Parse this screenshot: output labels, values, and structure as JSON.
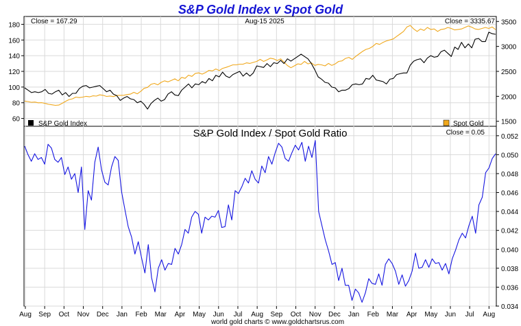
{
  "chart_data": [
    {
      "type": "line",
      "title": "S&P Gold Index v Spot Gold",
      "date_label": "Aug-15  2025",
      "close_left": "Close = 167.29",
      "close_right": "Close = 3335.67",
      "left_axis": {
        "ylim": [
          50,
          190
        ],
        "ticks": [
          "180",
          "160",
          "140",
          "120",
          "100",
          "80",
          "60"
        ]
      },
      "right_axis": {
        "ylim": [
          1400,
          3600
        ],
        "ticks": [
          "3500",
          "3000",
          "2500",
          "2000",
          "1500"
        ]
      },
      "series": [
        {
          "name": "S&P Gold Index",
          "axis": "left",
          "color": "#000000",
          "values": [
            99,
            96,
            93,
            94,
            93,
            94,
            97,
            92,
            91,
            94,
            96,
            90,
            93,
            88,
            92,
            92,
            98,
            101,
            102,
            99,
            100,
            101,
            102,
            98,
            94,
            96,
            91,
            89,
            83,
            86,
            88,
            85,
            84,
            80,
            82,
            78,
            72,
            79,
            83,
            86,
            82,
            84,
            91,
            94,
            90,
            89,
            96,
            100,
            104,
            99,
            104,
            103,
            107,
            105,
            111,
            108,
            115,
            113,
            119,
            114,
            112,
            116,
            118,
            120,
            114,
            118,
            114,
            118,
            127,
            126,
            125,
            130,
            126,
            131,
            130,
            134,
            130,
            136,
            133,
            136,
            139,
            142,
            139,
            136,
            130,
            122,
            113,
            110,
            106,
            105,
            100,
            99,
            94,
            96,
            96,
            98,
            103,
            104,
            103,
            104,
            111,
            110,
            115,
            109,
            108,
            107,
            104,
            110,
            111,
            116,
            117,
            118,
            118,
            128,
            133,
            135,
            136,
            131,
            137,
            140,
            138,
            139,
            145,
            147,
            143,
            139,
            151,
            148,
            157,
            150,
            155,
            150,
            161,
            162,
            158,
            158,
            170,
            168,
            167.29
          ]
        },
        {
          "name": "Spot Gold",
          "axis": "right",
          "color": "#f0a81c",
          "values": [
            1905,
            1895,
            1880,
            1885,
            1870,
            1873,
            1858,
            1840,
            1830,
            1820,
            1825,
            1860,
            1900,
            1935,
            1950,
            1985,
            1975,
            1985,
            2000,
            1990,
            2010,
            2005,
            2030,
            2020,
            1998,
            2007,
            1995,
            2017,
            2020,
            2022,
            2035,
            2045,
            2080,
            2050,
            2100,
            2160,
            2180,
            2240,
            2260,
            2230,
            2280,
            2310,
            2290,
            2320,
            2350,
            2310,
            2380,
            2360,
            2425,
            2400,
            2460,
            2470,
            2445,
            2475,
            2520,
            2510,
            2548,
            2516,
            2560,
            2580,
            2605,
            2630,
            2630,
            2645,
            2645,
            2670,
            2660,
            2680,
            2700,
            2740,
            2700,
            2730,
            2764,
            2750,
            2716,
            2750,
            2686,
            2617,
            2573,
            2610,
            2650,
            2640,
            2700,
            2650,
            2670,
            2620,
            2640,
            2630,
            2610,
            2660,
            2620,
            2650,
            2700,
            2710,
            2760,
            2780,
            2740,
            2800,
            2850,
            2900,
            2940,
            2960,
            3000,
            3060,
            3040,
            3080,
            3110,
            3130,
            3150,
            3200,
            3250,
            3300,
            3390,
            3420,
            3350,
            3300,
            3350,
            3320,
            3380,
            3340,
            3350,
            3300,
            3340,
            3350,
            3380,
            3360,
            3330,
            3340,
            3350,
            3380,
            3410,
            3385,
            3350,
            3340,
            3360,
            3380,
            3360,
            3390,
            3335.67
          ]
        }
      ],
      "legend": [
        "S&P Gold Index",
        "Spot Gold"
      ]
    },
    {
      "type": "line",
      "title": "S&P Gold Index  /  Spot Gold Ratio",
      "close_label": "Close = 0.05",
      "ylim": [
        0.034,
        0.053
      ],
      "right_ticks": [
        "0.052",
        "0.050",
        "0.048",
        "0.046",
        "0.044",
        "0.042",
        "0.040",
        "0.038",
        "0.036",
        "0.034"
      ],
      "series": [
        {
          "name": "S&P Gold Index / Spot Gold Ratio",
          "color": "#1414e0",
          "values": [
            0.0509,
            0.05,
            0.0493,
            0.0501,
            0.0495,
            0.0497,
            0.049,
            0.0511,
            0.0507,
            0.0495,
            0.0492,
            0.0497,
            0.0479,
            0.0487,
            0.0474,
            0.048,
            0.046,
            0.0487,
            0.0421,
            0.0462,
            0.0452,
            0.0492,
            0.0508,
            0.0484,
            0.0471,
            0.0468,
            0.0487,
            0.0498,
            0.0494,
            0.0461,
            0.0442,
            0.0424,
            0.0413,
            0.0395,
            0.0408,
            0.0391,
            0.0375,
            0.0405,
            0.037,
            0.0355,
            0.038,
            0.0389,
            0.0378,
            0.0385,
            0.0384,
            0.0401,
            0.0395,
            0.0405,
            0.0421,
            0.0417,
            0.0434,
            0.044,
            0.0437,
            0.0417,
            0.0434,
            0.0431,
            0.0435,
            0.0434,
            0.0441,
            0.0423,
            0.0424,
            0.0447,
            0.0431,
            0.0462,
            0.0459,
            0.0466,
            0.0475,
            0.047,
            0.0483,
            0.0474,
            0.047,
            0.0488,
            0.0481,
            0.0498,
            0.049,
            0.0502,
            0.0512,
            0.0508,
            0.0496,
            0.0493,
            0.0502,
            0.051,
            0.0505,
            0.0513,
            0.0493,
            0.0509,
            0.0497,
            0.0515,
            0.044,
            0.0425,
            0.041,
            0.0398,
            0.0384,
            0.0386,
            0.0367,
            0.038,
            0.0362,
            0.0362,
            0.0346,
            0.0358,
            0.0354,
            0.0344,
            0.0354,
            0.0369,
            0.0364,
            0.0363,
            0.0374,
            0.0362,
            0.0384,
            0.039,
            0.0385,
            0.0377,
            0.0363,
            0.0373,
            0.0361,
            0.0367,
            0.0377,
            0.0396,
            0.038,
            0.0381,
            0.0389,
            0.0381,
            0.039,
            0.0385,
            0.0386,
            0.0378,
            0.0385,
            0.0374,
            0.039,
            0.0399,
            0.041,
            0.0417,
            0.0412,
            0.0425,
            0.0435,
            0.0417,
            0.0447,
            0.0455,
            0.0481,
            0.0486,
            0.0496,
            0.0501
          ]
        }
      ]
    }
  ],
  "x_axis": {
    "labels": [
      "Aug",
      "Sep",
      "Oct",
      "Nov",
      "Dec",
      "Jan",
      "Feb",
      "Mar",
      "Apr",
      "May",
      "Jun",
      "Jul",
      "Aug",
      "Sep",
      "Oct",
      "Nov",
      "Dec",
      "Jan",
      "Feb",
      "Mar",
      "Apr",
      "May",
      "Jun",
      "Jul",
      "Aug"
    ]
  },
  "footer": "world gold charts © www.goldchartsrus.com"
}
